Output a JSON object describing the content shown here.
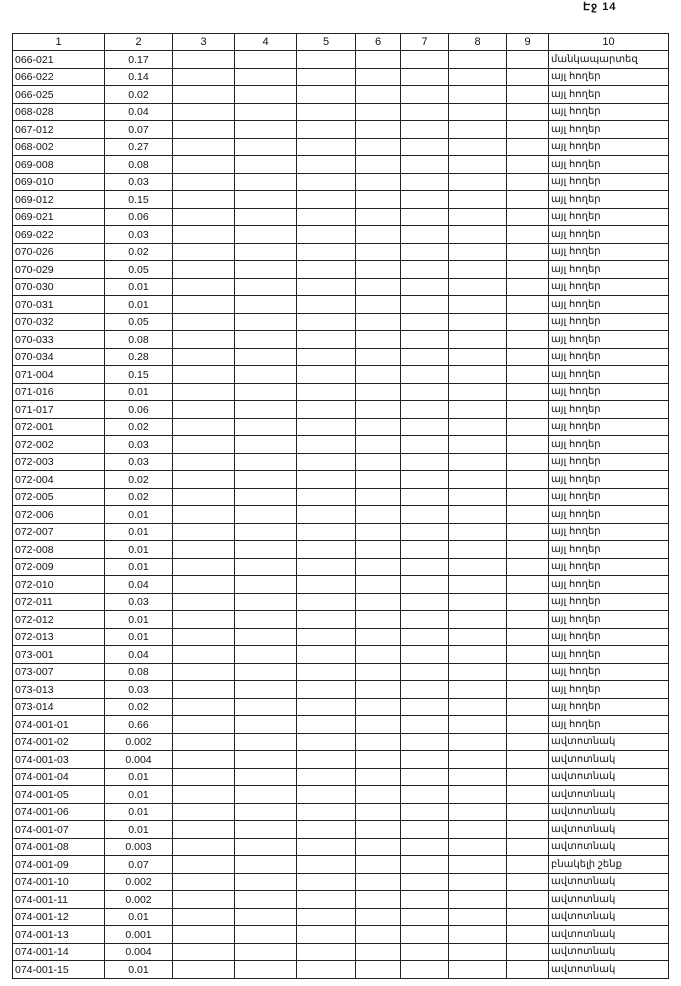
{
  "page_label": "Էջ 14",
  "headers": [
    "1",
    "2",
    "3",
    "4",
    "5",
    "6",
    "7",
    "8",
    "9",
    "10"
  ],
  "rows": [
    {
      "id": "066-021",
      "area": "0.17",
      "type": "մանկապարտեզ"
    },
    {
      "id": "066-022",
      "area": "0.14",
      "type": "այլ հողեր"
    },
    {
      "id": "066-025",
      "area": "0.02",
      "type": "այլ հողեր"
    },
    {
      "id": "068-028",
      "area": "0.04",
      "type": "այլ հողեր"
    },
    {
      "id": "067-012",
      "area": "0.07",
      "type": "այլ հողեր"
    },
    {
      "id": "068-002",
      "area": "0.27",
      "type": "այլ հողեր"
    },
    {
      "id": "069-008",
      "area": "0.08",
      "type": "այլ հողեր"
    },
    {
      "id": "069-010",
      "area": "0.03",
      "type": "այլ հողեր"
    },
    {
      "id": "069-012",
      "area": "0.15",
      "type": "այլ հողեր"
    },
    {
      "id": "069-021",
      "area": "0.06",
      "type": "այլ հողեր"
    },
    {
      "id": "069-022",
      "area": "0.03",
      "type": "այլ հողեր"
    },
    {
      "id": "070-026",
      "area": "0.02",
      "type": "այլ հողեր"
    },
    {
      "id": "070-029",
      "area": "0.05",
      "type": "այլ հողեր"
    },
    {
      "id": "070-030",
      "area": "0.01",
      "type": "այլ հողեր"
    },
    {
      "id": "070-031",
      "area": "0.01",
      "type": "այլ հողեր"
    },
    {
      "id": "070-032",
      "area": "0.05",
      "type": "այլ հողեր"
    },
    {
      "id": "070-033",
      "area": "0.08",
      "type": "այլ հողեր"
    },
    {
      "id": "070-034",
      "area": "0.28",
      "type": "այլ հողեր"
    },
    {
      "id": "071-004",
      "area": "0.15",
      "type": "այլ հողեր"
    },
    {
      "id": "071-016",
      "area": "0.01",
      "type": "այլ հողեր"
    },
    {
      "id": "071-017",
      "area": "0.06",
      "type": "այլ հողեր"
    },
    {
      "id": "072-001",
      "area": "0.02",
      "type": "այլ հողեր"
    },
    {
      "id": "072-002",
      "area": "0.03",
      "type": "այլ հողեր"
    },
    {
      "id": "072-003",
      "area": "0.03",
      "type": "այլ հողեր"
    },
    {
      "id": "072-004",
      "area": "0.02",
      "type": "այլ հողեր"
    },
    {
      "id": "072-005",
      "area": "0.02",
      "type": "այլ հողեր"
    },
    {
      "id": "072-006",
      "area": "0.01",
      "type": "այլ հողեր"
    },
    {
      "id": "072-007",
      "area": "0.01",
      "type": "այլ հողեր"
    },
    {
      "id": "072-008",
      "area": "0.01",
      "type": "այլ հողեր"
    },
    {
      "id": "072-009",
      "area": "0.01",
      "type": "այլ հողեր"
    },
    {
      "id": "072-010",
      "area": "0.04",
      "type": "այլ հողեր"
    },
    {
      "id": "072-011",
      "area": "0.03",
      "type": "այլ հողեր"
    },
    {
      "id": "072-012",
      "area": "0.01",
      "type": "այլ հողեր"
    },
    {
      "id": "072-013",
      "area": "0.01",
      "type": "այլ հողեր"
    },
    {
      "id": "073-001",
      "area": "0.04",
      "type": "այլ հողեր"
    },
    {
      "id": "073-007",
      "area": "0.08",
      "type": "այլ հողեր"
    },
    {
      "id": "073-013",
      "area": "0.03",
      "type": "այլ հողեր"
    },
    {
      "id": "073-014",
      "area": "0.02",
      "type": "այլ հողեր"
    },
    {
      "id": "074-001-01",
      "area": "0.66",
      "type": "այլ հողեր"
    },
    {
      "id": "074-001-02",
      "area": "0.002",
      "type": "ավտոտնակ"
    },
    {
      "id": "074-001-03",
      "area": "0.004",
      "type": "ավտոտնակ"
    },
    {
      "id": "074-001-04",
      "area": "0.01",
      "type": "ավտոտնակ"
    },
    {
      "id": "074-001-05",
      "area": "0.01",
      "type": "ավտոտնակ"
    },
    {
      "id": "074-001-06",
      "area": "0.01",
      "type": "ավտոտնակ"
    },
    {
      "id": "074-001-07",
      "area": "0.01",
      "type": "ավտոտնակ"
    },
    {
      "id": "074-001-08",
      "area": "0.003",
      "type": "ավտոտնակ"
    },
    {
      "id": "074-001-09",
      "area": "0.07",
      "type": "բնակելի շենք"
    },
    {
      "id": "074-001-10",
      "area": "0.002",
      "type": "ավտոտնակ"
    },
    {
      "id": "074-001-11",
      "area": "0.002",
      "type": "ավտոտնակ"
    },
    {
      "id": "074-001-12",
      "area": "0.01",
      "type": "ավտոտնակ"
    },
    {
      "id": "074-001-13",
      "area": "0.001",
      "type": "ավտոտնակ"
    },
    {
      "id": "074-001-14",
      "area": "0.004",
      "type": "ավտոտնակ"
    },
    {
      "id": "074-001-15",
      "area": "0.01",
      "type": "ավտոտնակ"
    }
  ]
}
